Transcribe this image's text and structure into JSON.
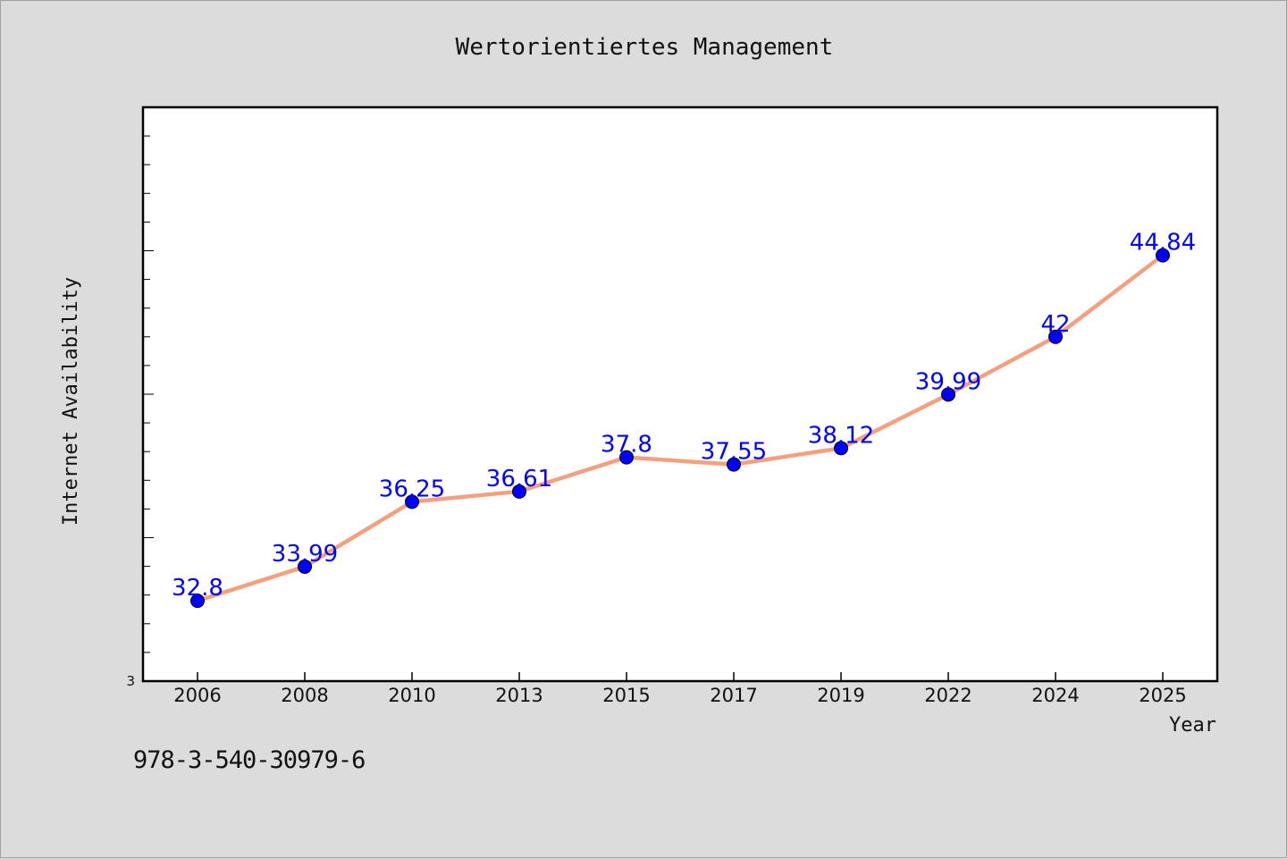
{
  "chart_data": {
    "type": "line",
    "title": "Wertorientiertes Management",
    "xlabel": "Year",
    "ylabel": "Internet Availability",
    "categories": [
      "2006",
      "2008",
      "2010",
      "2013",
      "2015",
      "2017",
      "2019",
      "2022",
      "2024",
      "2025"
    ],
    "series": [
      {
        "values": [
          32.8,
          33.99,
          36.25,
          36.61,
          37.8,
          37.55,
          38.12,
          39.99,
          42,
          44.84
        ],
        "data_labels": [
          "32.8",
          "33.99",
          "36.25",
          "36.61",
          "37.8",
          "37.55",
          "38.12",
          "39.99",
          "42",
          "44.84"
        ],
        "line_color": "#f4a07e",
        "marker_color": "#0000ff"
      }
    ],
    "y_tick_labels": [
      "3"
    ],
    "ylim": [
      30,
      50
    ],
    "grid": false
  },
  "footer": {
    "isbn": "978-3-540-30979-6"
  }
}
